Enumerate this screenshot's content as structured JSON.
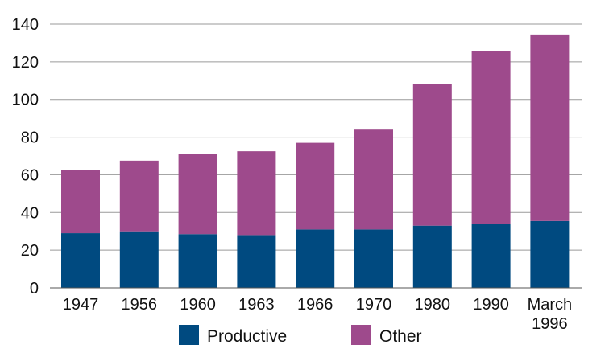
{
  "chart_data": {
    "type": "bar",
    "stacked": true,
    "categories": [
      [
        "1947"
      ],
      [
        "1956"
      ],
      [
        "1960"
      ],
      [
        "1963"
      ],
      [
        "1966"
      ],
      [
        "1970"
      ],
      [
        "1980"
      ],
      [
        "1990"
      ],
      [
        "March",
        "1996"
      ]
    ],
    "series": [
      {
        "name": "Productive",
        "color": "#004a80",
        "values": [
          29,
          30,
          28.5,
          28,
          31,
          31,
          33,
          34,
          35.5
        ]
      },
      {
        "name": "Other",
        "color": "#9e4a8c",
        "values": [
          33.5,
          37.5,
          42.5,
          44.5,
          46,
          53,
          75,
          91.5,
          99
        ]
      }
    ],
    "ylim": [
      0,
      140
    ],
    "yticks": [
      0,
      20,
      40,
      60,
      80,
      100,
      120,
      140
    ],
    "grid": true,
    "legend_position": "bottom"
  }
}
